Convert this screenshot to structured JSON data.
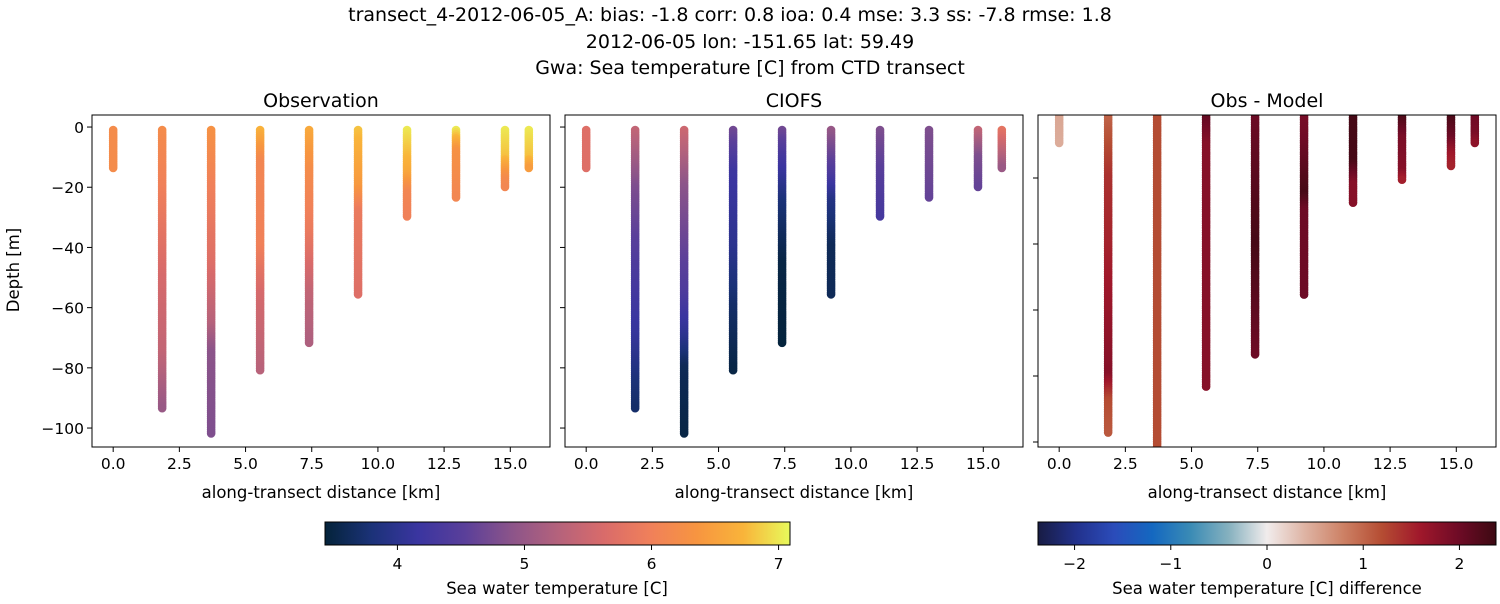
{
  "figure": {
    "title_lines": [
      "transect_4-2012-06-05_A: bias: -1.8  corr: 0.8  ioa: 0.4  mse: 3.3  ss: -7.8  rmse: 1.8",
      "2012-06-05 lon: -151.65 lat: 59.49",
      "Gwa: Sea temperature [C] from CTD transect"
    ]
  },
  "chart_data": [
    {
      "type": "scatter",
      "title": "Observation",
      "xlabel": "along-transect distance [km]",
      "ylabel": "Depth [m]",
      "xlim": [
        -0.8,
        16.5
      ],
      "ylim": [
        -106.3,
        4
      ],
      "xticks": [
        "0.0",
        "2.5",
        "5.0",
        "7.5",
        "10.0",
        "12.5",
        "15.0"
      ],
      "yticks": [
        "0",
        "−20",
        "−40",
        "−60",
        "−80",
        "−100"
      ],
      "colormap": "thermal",
      "casts": [
        {
          "x": 0.0,
          "profile": [
            [
              1,
              6.2
            ],
            [
              14,
              6.2
            ]
          ]
        },
        {
          "x": 1.85,
          "profile": [
            [
              1,
              6.2
            ],
            [
              20,
              6.0
            ],
            [
              50,
              5.6
            ],
            [
              75,
              5.4
            ],
            [
              94,
              5.0
            ]
          ]
        },
        {
          "x": 3.7,
          "profile": [
            [
              1,
              6.3
            ],
            [
              20,
              6.0
            ],
            [
              45,
              5.7
            ],
            [
              65,
              5.3
            ],
            [
              75,
              4.9
            ],
            [
              102,
              4.8
            ]
          ]
        },
        {
          "x": 5.55,
          "profile": [
            [
              1,
              6.7
            ],
            [
              12,
              6.1
            ],
            [
              40,
              6.0
            ],
            [
              55,
              5.6
            ],
            [
              81,
              5.3
            ]
          ]
        },
        {
          "x": 7.4,
          "profile": [
            [
              1,
              6.6
            ],
            [
              15,
              6.2
            ],
            [
              35,
              5.9
            ],
            [
              55,
              5.4
            ],
            [
              72,
              5.2
            ]
          ]
        },
        {
          "x": 9.25,
          "profile": [
            [
              1,
              6.8
            ],
            [
              20,
              6.4
            ],
            [
              28,
              5.9
            ],
            [
              56,
              5.7
            ]
          ]
        },
        {
          "x": 11.1,
          "profile": [
            [
              1,
              7.0
            ],
            [
              15,
              6.6
            ],
            [
              22,
              6.1
            ],
            [
              30,
              6.0
            ]
          ]
        },
        {
          "x": 12.95,
          "profile": [
            [
              1,
              7.0
            ],
            [
              8,
              6.3
            ],
            [
              24,
              6.1
            ]
          ]
        },
        {
          "x": 14.8,
          "profile": [
            [
              1,
              7.0
            ],
            [
              10,
              6.8
            ],
            [
              17,
              6.2
            ],
            [
              20,
              6.1
            ]
          ]
        },
        {
          "x": 15.7,
          "profile": [
            [
              1,
              7.0
            ],
            [
              10,
              6.8
            ],
            [
              14,
              6.4
            ]
          ]
        }
      ]
    },
    {
      "type": "scatter",
      "title": "CIOFS",
      "xlabel": "along-transect distance [km]",
      "xlim": [
        -0.8,
        16.5
      ],
      "ylim": [
        -106.3,
        4
      ],
      "xticks": [
        "0.0",
        "2.5",
        "5.0",
        "7.5",
        "10.0",
        "12.5",
        "15.0"
      ],
      "colormap": "thermal",
      "casts": [
        {
          "x": 0.0,
          "profile": [
            [
              1,
              5.7
            ],
            [
              14,
              5.7
            ]
          ]
        },
        {
          "x": 1.85,
          "profile": [
            [
              1,
              5.4
            ],
            [
              20,
              4.8
            ],
            [
              45,
              4.4
            ],
            [
              70,
              4.1
            ],
            [
              85,
              3.8
            ],
            [
              94,
              3.7
            ]
          ]
        },
        {
          "x": 3.7,
          "profile": [
            [
              1,
              5.5
            ],
            [
              20,
              4.9
            ],
            [
              55,
              4.4
            ],
            [
              70,
              4.0
            ],
            [
              80,
              3.6
            ],
            [
              102,
              3.5
            ]
          ]
        },
        {
          "x": 5.55,
          "profile": [
            [
              1,
              4.7
            ],
            [
              15,
              4.2
            ],
            [
              40,
              4.0
            ],
            [
              60,
              3.7
            ],
            [
              81,
              3.5
            ]
          ]
        },
        {
          "x": 7.4,
          "profile": [
            [
              1,
              4.7
            ],
            [
              10,
              4.3
            ],
            [
              25,
              3.8
            ],
            [
              45,
              3.5
            ],
            [
              72,
              3.45
            ]
          ]
        },
        {
          "x": 9.25,
          "profile": [
            [
              1,
              5.0
            ],
            [
              15,
              4.4
            ],
            [
              25,
              3.9
            ],
            [
              40,
              3.6
            ],
            [
              56,
              3.6
            ]
          ]
        },
        {
          "x": 11.1,
          "profile": [
            [
              1,
              4.8
            ],
            [
              15,
              4.5
            ],
            [
              30,
              4.3
            ]
          ]
        },
        {
          "x": 12.95,
          "profile": [
            [
              1,
              4.8
            ],
            [
              24,
              4.6
            ]
          ]
        },
        {
          "x": 14.8,
          "profile": [
            [
              1,
              5.4
            ],
            [
              10,
              4.8
            ],
            [
              20,
              4.6
            ]
          ]
        },
        {
          "x": 15.7,
          "profile": [
            [
              1,
              5.8
            ],
            [
              14,
              5.0
            ]
          ]
        }
      ]
    },
    {
      "type": "scatter",
      "title": "Obs - Model",
      "xlabel": "along-transect distance [km]",
      "xlim": [
        -0.8,
        16.5
      ],
      "ylim": [
        -102,
        -0.9
      ],
      "xticks": [
        "0.0",
        "2.5",
        "5.0",
        "7.5",
        "10.0",
        "12.5",
        "15.0"
      ],
      "colormap": "balance",
      "casts": [
        {
          "x": 0.0,
          "profile": [
            [
              1,
              0.5
            ],
            [
              10,
              0.45
            ]
          ]
        },
        {
          "x": 1.85,
          "profile": [
            [
              1,
              1.0
            ],
            [
              20,
              1.4
            ],
            [
              40,
              1.5
            ],
            [
              80,
              1.8
            ],
            [
              88,
              1.2
            ],
            [
              98,
              1.1
            ]
          ]
        },
        {
          "x": 3.7,
          "profile": [
            [
              1,
              1.2
            ],
            [
              110,
              1.2
            ]
          ]
        },
        {
          "x": 5.55,
          "profile": [
            [
              1,
              2.1
            ],
            [
              10,
              1.8
            ],
            [
              84,
              1.8
            ]
          ]
        },
        {
          "x": 7.4,
          "profile": [
            [
              1,
              2.0
            ],
            [
              40,
              2.3
            ],
            [
              74,
              2.0
            ]
          ]
        },
        {
          "x": 9.25,
          "profile": [
            [
              1,
              1.9
            ],
            [
              10,
              2.0
            ],
            [
              25,
              2.3
            ],
            [
              30,
              2.0
            ],
            [
              56,
              2.0
            ]
          ]
        },
        {
          "x": 11.1,
          "profile": [
            [
              1,
              2.3
            ],
            [
              15,
              2.3
            ],
            [
              22,
              1.8
            ],
            [
              28,
              1.8
            ]
          ]
        },
        {
          "x": 12.95,
          "profile": [
            [
              1,
              2.3
            ],
            [
              8,
              1.9
            ],
            [
              18,
              1.8
            ],
            [
              21,
              1.5
            ]
          ]
        },
        {
          "x": 14.8,
          "profile": [
            [
              1,
              2.3
            ],
            [
              8,
              2.0
            ],
            [
              13,
              1.6
            ],
            [
              17,
              1.5
            ]
          ]
        },
        {
          "x": 15.7,
          "profile": [
            [
              1,
              2.0
            ],
            [
              7,
              1.9
            ],
            [
              10,
              1.7
            ]
          ]
        }
      ]
    }
  ],
  "colorbars": [
    {
      "label": "Sea water temperature [C]",
      "range": [
        3.43,
        7.09
      ],
      "ticks": [
        4,
        5,
        6,
        7
      ],
      "tick_labels": [
        "4",
        "5",
        "6",
        "7"
      ],
      "colormap": "thermal"
    },
    {
      "label": "Sea water temperature [C] difference",
      "range": [
        -2.38,
        2.38
      ],
      "ticks": [
        -2,
        -1,
        0,
        1,
        2
      ],
      "tick_labels": [
        "−2",
        "−1",
        "0",
        "1",
        "2"
      ],
      "colormap": "balance"
    }
  ],
  "colormaps": {
    "thermal": [
      "#04233a",
      "#1b3278",
      "#3a35a0",
      "#5a3f9a",
      "#8b548a",
      "#b4627c",
      "#d96b6a",
      "#f0805a",
      "#f79540",
      "#f9b43a",
      "#e8fa5b"
    ],
    "balance": [
      "#181c43",
      "#22318c",
      "#2b4cba",
      "#1468c0",
      "#3a8bb5",
      "#86b1bf",
      "#f1ecec",
      "#deb3a3",
      "#cd8165",
      "#b54d33",
      "#a0182b",
      "#6f0b26",
      "#3c0912"
    ]
  }
}
